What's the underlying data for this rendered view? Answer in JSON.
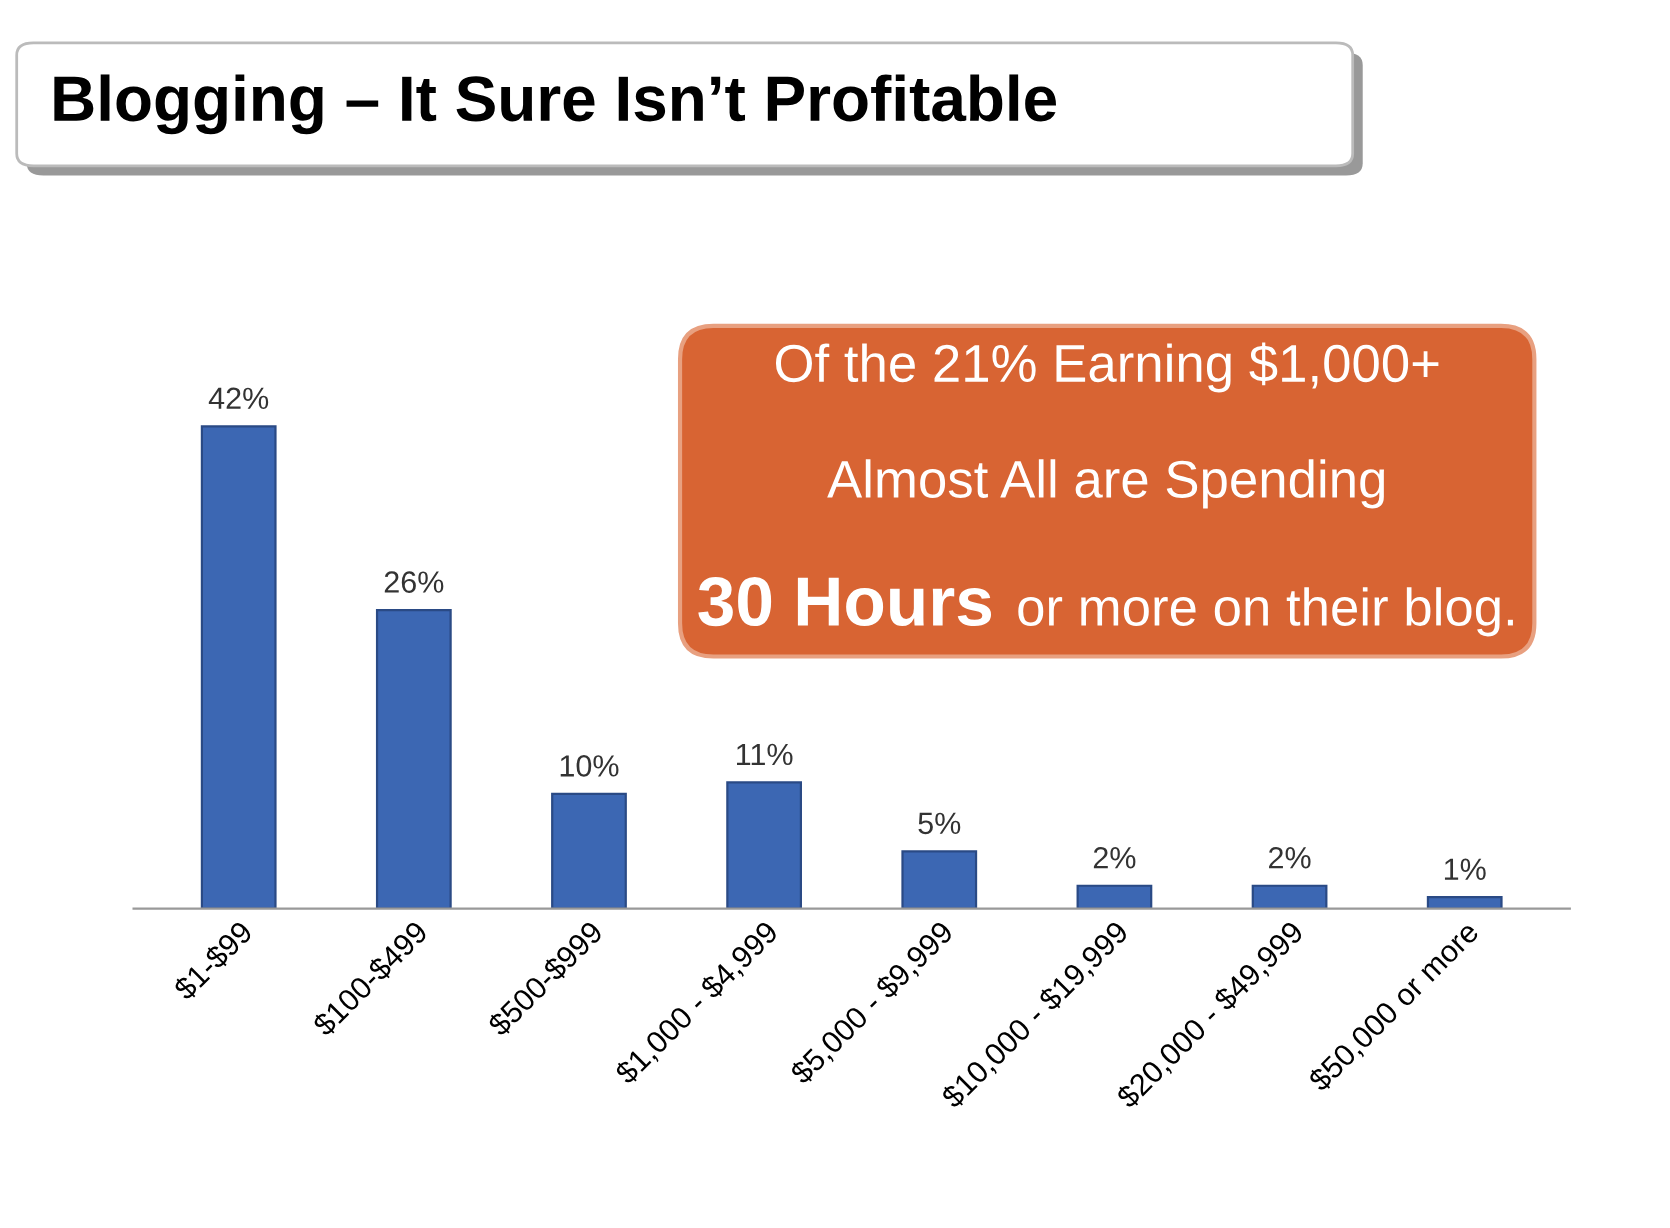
{
  "chart_data": {
    "type": "bar",
    "title": "Blogging – It Sure Isn’t Profitable",
    "categories": [
      "$1-$99",
      "$100-$499",
      "$500-$999",
      "$1,000 - $4,999",
      "$5,000 - $9,999",
      "$10,000 - $19,999",
      "$20,000 - $49,999",
      "$50,000 or more"
    ],
    "values": [
      42,
      26,
      10,
      11,
      5,
      2,
      2,
      1
    ],
    "value_labels": [
      "42%",
      "26%",
      "10%",
      "11%",
      "5%",
      "2%",
      "2%",
      "1%"
    ],
    "color": "#3c67b3",
    "annotations": [
      "Of the 21% Earning $1,000+",
      "Almost All are Spending",
      "30 Hours",
      "or more on their blog."
    ]
  }
}
